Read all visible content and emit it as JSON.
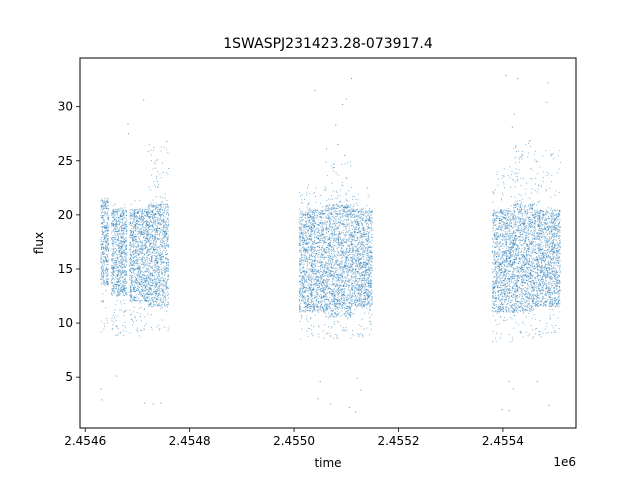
{
  "chart_data": {
    "type": "scatter",
    "title": "1SWASPJ231423.28-073917.4",
    "xlabel": "time",
    "ylabel": "flux",
    "x_offset_label": "1e6",
    "xlim": [
      2454590,
      2455540
    ],
    "ylim": [
      0.3,
      34.5
    ],
    "x_ticks": [
      2454600,
      2454800,
      2455000,
      2455200,
      2455400
    ],
    "x_tick_labels": [
      "2.4546",
      "2.4548",
      "2.4550",
      "2.4552",
      "2.4554"
    ],
    "y_ticks": [
      5,
      10,
      15,
      20,
      25,
      30
    ],
    "y_tick_labels": [
      "5",
      "10",
      "15",
      "20",
      "25",
      "30"
    ],
    "grid": false,
    "marker_color": "#1f77b4",
    "segments": [
      {
        "x": [
          2454630,
          2454645
        ],
        "y_core": [
          13.5,
          21.5
        ],
        "y_spread": [
          9.0,
          22.0
        ]
      },
      {
        "x": [
          2454650,
          2454680
        ],
        "y_core": [
          12.5,
          20.5
        ],
        "y_spread": [
          8.8,
          21.0
        ]
      },
      {
        "x": [
          2454685,
          2454720
        ],
        "y_core": [
          12.0,
          20.5
        ],
        "y_spread": [
          8.7,
          21.5
        ]
      },
      {
        "x": [
          2454720,
          2454760
        ],
        "y_core": [
          11.5,
          21.0
        ],
        "y_spread": [
          8.8,
          26.5
        ]
      },
      {
        "x": [
          2455010,
          2455060
        ],
        "y_core": [
          11.0,
          20.5
        ],
        "y_spread": [
          8.5,
          23.0
        ]
      },
      {
        "x": [
          2455060,
          2455110
        ],
        "y_core": [
          10.5,
          21.0
        ],
        "y_spread": [
          8.2,
          25.0
        ]
      },
      {
        "x": [
          2455110,
          2455150
        ],
        "y_core": [
          11.5,
          20.5
        ],
        "y_spread": [
          8.7,
          22.0
        ]
      },
      {
        "x": [
          2455380,
          2455420
        ],
        "y_core": [
          11.0,
          20.5
        ],
        "y_spread": [
          8.2,
          25.0
        ]
      },
      {
        "x": [
          2455420,
          2455460
        ],
        "y_core": [
          11.0,
          21.0
        ],
        "y_spread": [
          8.5,
          27.0
        ]
      },
      {
        "x": [
          2455460,
          2455510
        ],
        "y_core": [
          11.5,
          20.5
        ],
        "y_spread": [
          8.7,
          26.0
        ]
      }
    ],
    "outliers": [
      [
        2454630,
        3.9
      ],
      [
        2454632,
        2.9
      ],
      [
        2454660,
        5.1
      ],
      [
        2454682,
        28.4
      ],
      [
        2454683,
        27.5
      ],
      [
        2454712,
        30.6
      ],
      [
        2454714,
        2.6
      ],
      [
        2454718,
        16.5
      ],
      [
        2454730,
        2.5
      ],
      [
        2454738,
        23.1
      ],
      [
        2454745,
        2.6
      ],
      [
        2454756,
        26.8
      ],
      [
        2454760,
        24.3
      ],
      [
        2455040,
        31.5
      ],
      [
        2455046,
        3.0
      ],
      [
        2455050,
        4.6
      ],
      [
        2455062,
        26.1
      ],
      [
        2455070,
        2.5
      ],
      [
        2455080,
        28.3
      ],
      [
        2455084,
        26.5
      ],
      [
        2455093,
        30.2
      ],
      [
        2455097,
        25.5
      ],
      [
        2455100,
        30.7
      ],
      [
        2455106,
        2.2
      ],
      [
        2455110,
        32.6
      ],
      [
        2455118,
        1.8
      ],
      [
        2455121,
        4.9
      ],
      [
        2455128,
        3.8
      ],
      [
        2455140,
        22.5
      ],
      [
        2455398,
        2.0
      ],
      [
        2455406,
        32.9
      ],
      [
        2455412,
        1.9
      ],
      [
        2455418,
        28.1
      ],
      [
        2455422,
        29.3
      ],
      [
        2455428,
        32.6
      ],
      [
        2455438,
        25.5
      ],
      [
        2455466,
        4.6
      ],
      [
        2455484,
        30.4
      ],
      [
        2455486,
        32.2
      ],
      [
        2455488,
        2.4
      ],
      [
        2455492,
        25.6
      ],
      [
        2455412,
        4.6
      ],
      [
        2455420,
        3.9
      ]
    ]
  }
}
